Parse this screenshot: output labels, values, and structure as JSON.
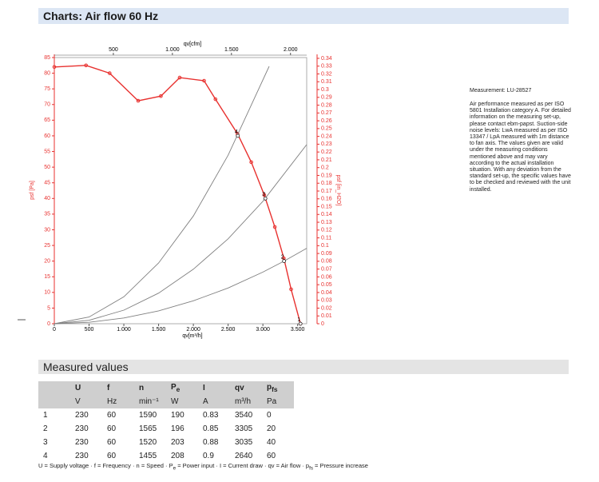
{
  "header": {
    "title": "Charts: Air flow 60 Hz"
  },
  "chart_data": {
    "type": "line",
    "x_label": "qv[m³/h]",
    "x2_label": "qv[cfm]",
    "y_label": "psf [Pa]",
    "y2_label": "psf [in_H2O]",
    "xlim": [
      0,
      3630
    ],
    "xticks": [
      0,
      {
        "value": 500,
        "label": "500"
      },
      {
        "value": 1000,
        "label": "1.000"
      },
      {
        "value": 1500,
        "label": "1.500"
      },
      {
        "value": 2000,
        "label": "2.000"
      },
      {
        "value": 2500,
        "label": "2.500"
      },
      {
        "value": 3000,
        "label": "3.000"
      },
      {
        "value": 3500,
        "label": "3.500"
      }
    ],
    "x2lim": [
      0,
      2137
    ],
    "x2ticks": [
      {
        "value": 500,
        "label": "500"
      },
      {
        "value": 1000,
        "label": "1.000"
      },
      {
        "value": 1500,
        "label": "1.500"
      },
      {
        "value": 2000,
        "label": "2.000"
      }
    ],
    "ylim": [
      0,
      85
    ],
    "yticks": [
      0,
      5,
      10,
      15,
      20,
      25,
      30,
      35,
      40,
      45,
      50,
      55,
      60,
      65,
      70,
      75,
      80,
      85
    ],
    "y2lim": [
      0,
      0.341
    ],
    "y2ticks": [
      0,
      0.01,
      0.02,
      0.03,
      0.04,
      0.05,
      0.06,
      0.07,
      0.08,
      0.09,
      0.1,
      0.11,
      0.12,
      0.13,
      0.14,
      0.15,
      0.16,
      0.17,
      0.18,
      0.19,
      0.2,
      0.21,
      0.22,
      0.23,
      0.24,
      0.25,
      0.26,
      0.27,
      0.28,
      0.29,
      0.3,
      0.31,
      0.32,
      0.33,
      0.34
    ],
    "series": [
      {
        "color": "#e8312f",
        "markers": true,
        "x": [
          0,
          456,
          796,
          1206,
          1533,
          1803,
          2154,
          2318,
          2634,
          2833,
          3020,
          3172,
          3301,
          3406,
          3540
        ],
        "values": [
          82,
          82.5,
          80,
          71.2,
          72.7,
          78.6,
          77.6,
          71.7,
          60.7,
          51.6,
          41.1,
          30.9,
          20.9,
          11,
          0
        ]
      },
      {
        "color": "#808080",
        "markers": false,
        "x": [
          0,
          500,
          1000,
          1500,
          2000,
          2500,
          3090
        ],
        "values": [
          0,
          2.15,
          8.6,
          19.4,
          34.4,
          53.8,
          82.2
        ]
      },
      {
        "color": "#808080",
        "markers": false,
        "x": [
          0,
          500,
          1000,
          1500,
          2000,
          2500,
          3000,
          3630
        ],
        "values": [
          0,
          1.09,
          4.34,
          9.77,
          17.4,
          27.1,
          39.1,
          57.2
        ]
      },
      {
        "color": "#808080",
        "markers": false,
        "x": [
          0,
          500,
          1000,
          1500,
          2000,
          2500,
          3000,
          3305,
          3630
        ],
        "values": [
          0,
          0.46,
          1.83,
          4.12,
          7.32,
          11.4,
          16.5,
          20,
          24.1
        ]
      }
    ],
    "operating_points": [
      {
        "label": "1",
        "x": 3540,
        "y": 0
      },
      {
        "label": "2",
        "x": 3305,
        "y": 20
      },
      {
        "label": "3",
        "x": 3035,
        "y": 40
      },
      {
        "label": "4",
        "x": 2640,
        "y": 60
      }
    ]
  },
  "notes": {
    "measurement": "Measurement: LU-28527",
    "text": "Air performance measured as per ISO 5801 Installation category A. For detailed information on the measuring set-up, please contact ebm-papst. Suction-side noise levels: LwA measured as per ISO 13347 / LpA measured with 1m distance to fan axis. The values given are valid under the measuring conditions mentioned above and may vary according to the actual installation situation. With any deviation from the standard set-up, the specific values have to be checked and reviewed with the unit installed."
  },
  "table": {
    "title": "Measured values",
    "columns": [
      {
        "text": "U"
      },
      {
        "text": "f"
      },
      {
        "text": "n"
      },
      {
        "text": "P",
        "sub": "e"
      },
      {
        "text": "I"
      },
      {
        "text": "qv"
      },
      {
        "text": "p",
        "sub": "fs"
      }
    ],
    "units": [
      "V",
      "Hz",
      "min⁻¹",
      "W",
      "A",
      "m³/h",
      "Pa"
    ],
    "rows": [
      [
        1,
        230,
        60,
        1590,
        190,
        0.83,
        3540,
        0
      ],
      [
        2,
        230,
        60,
        1565,
        196,
        0.85,
        3305,
        20
      ],
      [
        3,
        230,
        60,
        1520,
        203,
        0.88,
        3035,
        40
      ],
      [
        4,
        230,
        60,
        1455,
        208,
        0.9,
        2640,
        60
      ]
    ],
    "footnote": [
      "U = Supply voltage · f = Frequency · n = Speed · P",
      "e",
      " = Power input · I = Current draw · qv = Air flow · p",
      "fs",
      " = Pressure increase"
    ]
  }
}
